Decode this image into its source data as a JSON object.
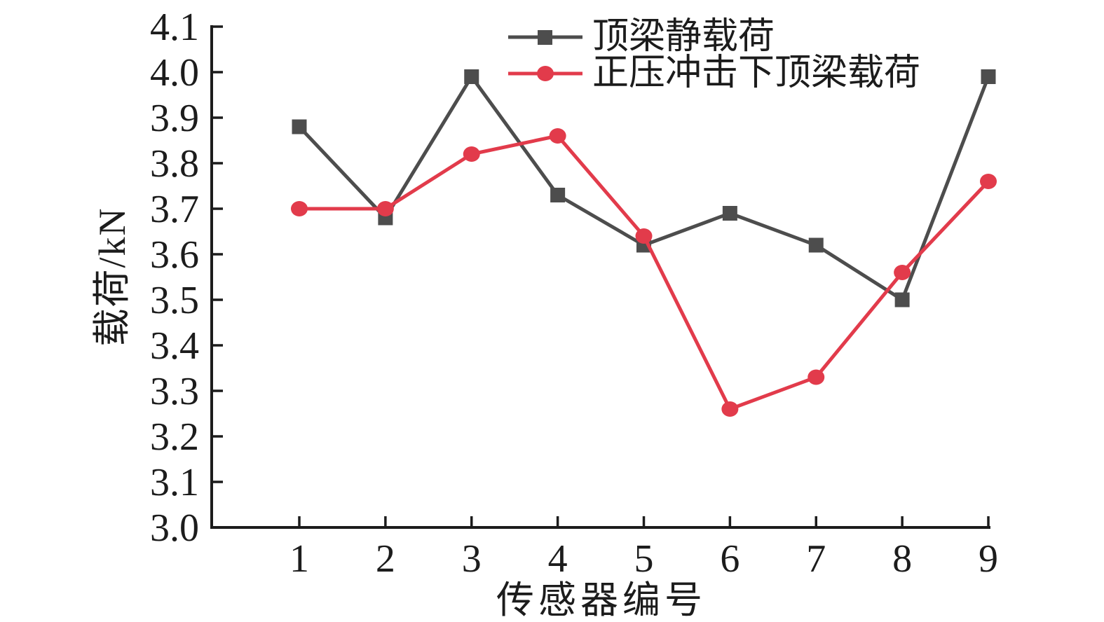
{
  "chart_data": {
    "type": "line",
    "title": "",
    "xlabel": "传感器编号",
    "ylabel": "载荷/kN",
    "categories": [
      "1",
      "2",
      "3",
      "4",
      "5",
      "6",
      "7",
      "8",
      "9"
    ],
    "ylim": [
      3.0,
      4.1
    ],
    "y_tick_labels": [
      "3.0",
      "3.1",
      "3.2",
      "3.3",
      "3.4",
      "3.5",
      "3.6",
      "3.7",
      "3.8",
      "3.9",
      "4.0",
      "4.1"
    ],
    "grid": false,
    "legend_position": "top-center",
    "axis_color": "#1c1c1c",
    "text_color": "#1c1c1c",
    "series": [
      {
        "name": "顶梁静载荷",
        "marker": "square",
        "color": "#4d4d4d",
        "values": [
          3.88,
          3.68,
          3.99,
          3.73,
          3.62,
          3.69,
          3.62,
          3.5,
          3.99
        ]
      },
      {
        "name": "正压冲击下顶梁载荷",
        "marker": "circle",
        "color": "#e23b4b",
        "values": [
          3.7,
          3.7,
          3.82,
          3.86,
          3.64,
          3.26,
          3.33,
          3.56,
          3.76
        ]
      }
    ]
  }
}
